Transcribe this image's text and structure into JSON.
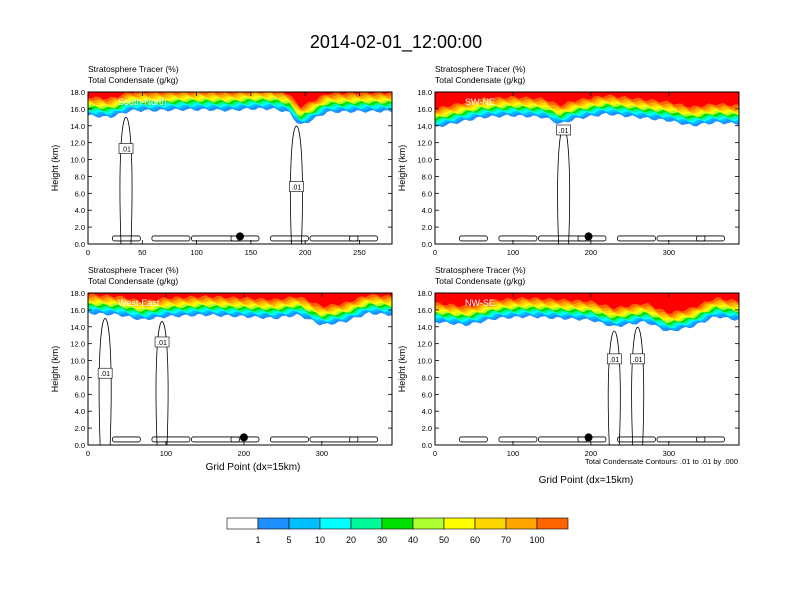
{
  "figure": {
    "title": "2014-02-01_12:00:00",
    "contour_note": "Total Condensate Contours: .01 to .01 by .000",
    "xlabel": "Grid Point (dx=15km)",
    "ylabel": "Height (km)"
  },
  "panel_titles": {
    "line1": "Stratosphere Tracer   (%)",
    "line2": "Total Condensate   (g/kg)"
  },
  "colors": {
    "levels": [
      "#ffffff",
      "#1e90ff",
      "#00bfff",
      "#00ffff",
      "#00fa9a",
      "#00e000",
      "#adff2f",
      "#ffff00",
      "#ffd700",
      "#ffa500",
      "#ff6400",
      "#ff0000"
    ]
  },
  "colorbar": {
    "labels": [
      "1",
      "5",
      "10",
      "20",
      "30",
      "40",
      "50",
      "60",
      "70",
      "100"
    ]
  },
  "chart_data": [
    {
      "type": "heatmap",
      "panel": "South-North",
      "ylim": [
        0,
        18
      ],
      "xlim": [
        0,
        280
      ],
      "x_ticks": [
        0,
        50,
        100,
        150,
        200,
        250
      ],
      "y_ticks": [
        "0.0",
        "2.0",
        "4.0",
        "6.0",
        "8.0",
        "10.0",
        "12.0",
        "14.0",
        "16.0",
        "18.0"
      ],
      "stratosphere_base_km": [
        [
          0,
          15.2
        ],
        [
          20,
          15.0
        ],
        [
          40,
          15.8
        ],
        [
          60,
          15.8
        ],
        [
          90,
          15.9
        ],
        [
          110,
          15.9
        ],
        [
          130,
          15.8
        ],
        [
          150,
          16.0
        ],
        [
          170,
          16.0
        ],
        [
          185,
          15.6
        ],
        [
          195,
          14.0
        ],
        [
          205,
          14.6
        ],
        [
          220,
          15.6
        ],
        [
          250,
          15.7
        ],
        [
          280,
          15.7
        ]
      ],
      "marker_x": 140,
      "contour_labels": [
        {
          "x": 35,
          "y": 11.3,
          "text": ".01"
        },
        {
          "x": 192,
          "y": 6.8,
          "text": ".01"
        }
      ]
    },
    {
      "type": "heatmap",
      "panel": "SW-NE",
      "ylim": [
        0,
        18
      ],
      "xlim": [
        0,
        390
      ],
      "x_ticks": [
        0,
        100,
        200,
        300
      ],
      "y_ticks": [
        "0.0",
        "2.0",
        "4.0",
        "6.0",
        "8.0",
        "10.0",
        "12.0",
        "14.0",
        "16.0",
        "18.0"
      ],
      "stratosphere_base_km": [
        [
          0,
          13.8
        ],
        [
          30,
          14.4
        ],
        [
          60,
          15.0
        ],
        [
          100,
          15.2
        ],
        [
          140,
          15.0
        ],
        [
          160,
          14.2
        ],
        [
          180,
          14.8
        ],
        [
          220,
          15.4
        ],
        [
          260,
          15.0
        ],
        [
          300,
          14.6
        ],
        [
          330,
          14.0
        ],
        [
          360,
          14.4
        ],
        [
          390,
          14.2
        ]
      ],
      "marker_x": 197,
      "contour_labels": [
        {
          "x": 165,
          "y": 13.5,
          "text": ".01"
        }
      ]
    },
    {
      "type": "heatmap",
      "panel": "West-East",
      "ylim": [
        0,
        18
      ],
      "xlim": [
        0,
        390
      ],
      "x_ticks": [
        0,
        100,
        200,
        300
      ],
      "y_ticks": [
        "0.0",
        "2.0",
        "4.0",
        "6.0",
        "8.0",
        "10.0",
        "12.0",
        "14.0",
        "16.0",
        "18.0"
      ],
      "stratosphere_base_km": [
        [
          0,
          15.6
        ],
        [
          40,
          15.4
        ],
        [
          70,
          14.8
        ],
        [
          100,
          15.2
        ],
        [
          150,
          15.4
        ],
        [
          200,
          15.2
        ],
        [
          240,
          15.0
        ],
        [
          270,
          15.4
        ],
        [
          300,
          14.2
        ],
        [
          330,
          14.6
        ],
        [
          360,
          15.6
        ],
        [
          390,
          15.4
        ]
      ],
      "marker_x": 200,
      "contour_labels": [
        {
          "x": 22,
          "y": 8.5,
          "text": ".01"
        },
        {
          "x": 95,
          "y": 12.2,
          "text": ".01"
        }
      ]
    },
    {
      "type": "heatmap",
      "panel": "NW-SE",
      "ylim": [
        0,
        18
      ],
      "xlim": [
        0,
        390
      ],
      "x_ticks": [
        0,
        100,
        200,
        300
      ],
      "y_ticks": [
        "0.0",
        "2.0",
        "4.0",
        "6.0",
        "8.0",
        "10.0",
        "12.0",
        "14.0",
        "16.0",
        "18.0"
      ],
      "stratosphere_base_km": [
        [
          0,
          14.6
        ],
        [
          40,
          14.2
        ],
        [
          80,
          15.0
        ],
        [
          120,
          15.2
        ],
        [
          160,
          15.0
        ],
        [
          200,
          14.8
        ],
        [
          230,
          14.0
        ],
        [
          270,
          14.6
        ],
        [
          300,
          13.4
        ],
        [
          330,
          14.0
        ],
        [
          360,
          15.2
        ],
        [
          390,
          14.8
        ]
      ],
      "marker_x": 197,
      "contour_labels": [
        {
          "x": 230,
          "y": 10.2,
          "text": ".01"
        },
        {
          "x": 260,
          "y": 10.2,
          "text": ".01"
        }
      ]
    }
  ]
}
